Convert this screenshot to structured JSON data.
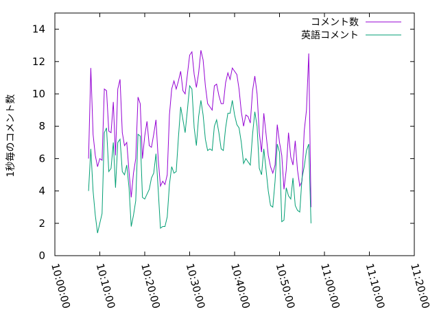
{
  "chart_data": {
    "type": "line",
    "title": "",
    "xlabel": "",
    "ylabel": "1秒毎のコメント数",
    "ylim": [
      0,
      15
    ],
    "yticks": [
      0,
      2,
      4,
      6,
      8,
      10,
      12,
      14
    ],
    "xlim": [
      "10:00:00",
      "11:20:00"
    ],
    "xticks": [
      "10:00:00",
      "10:10:00",
      "10:20:00",
      "10:30:00",
      "10:40:00",
      "10:50:00",
      "11:00:00",
      "11:10:00",
      "11:20:00"
    ],
    "grid": false,
    "legend_position": "top-right",
    "series": [
      {
        "name": "コメント数",
        "color": "#9400d3",
        "points": [
          [
            "10:07:30",
            6.0
          ],
          [
            "10:08:00",
            11.6
          ],
          [
            "10:08:30",
            7.5
          ],
          [
            "10:09:00",
            6.2
          ],
          [
            "10:09:30",
            5.5
          ],
          [
            "10:10:00",
            6.0
          ],
          [
            "10:10:30",
            5.9
          ],
          [
            "10:11:00",
            10.3
          ],
          [
            "10:11:30",
            10.2
          ],
          [
            "10:12:00",
            7.7
          ],
          [
            "10:12:30",
            7.6
          ],
          [
            "10:13:00",
            9.5
          ],
          [
            "10:13:30",
            6.2
          ],
          [
            "10:14:00",
            10.3
          ],
          [
            "10:14:30",
            10.9
          ],
          [
            "10:15:00",
            7.6
          ],
          [
            "10:15:30",
            6.8
          ],
          [
            "10:16:00",
            7.0
          ],
          [
            "10:16:30",
            5.2
          ],
          [
            "10:17:00",
            3.6
          ],
          [
            "10:17:30",
            5.1
          ],
          [
            "10:18:00",
            6.0
          ],
          [
            "10:18:30",
            9.8
          ],
          [
            "10:19:00",
            9.4
          ],
          [
            "10:19:30",
            6.0
          ],
          [
            "10:20:00",
            7.4
          ],
          [
            "10:20:30",
            8.3
          ],
          [
            "10:21:00",
            6.8
          ],
          [
            "10:21:30",
            6.7
          ],
          [
            "10:22:00",
            7.5
          ],
          [
            "10:22:30",
            8.4
          ],
          [
            "10:23:00",
            6.0
          ],
          [
            "10:23:30",
            4.3
          ],
          [
            "10:24:00",
            4.6
          ],
          [
            "10:24:30",
            4.4
          ],
          [
            "10:25:00",
            5.0
          ],
          [
            "10:25:30",
            8.7
          ],
          [
            "10:26:00",
            10.3
          ],
          [
            "10:26:30",
            10.8
          ],
          [
            "10:27:00",
            10.3
          ],
          [
            "10:27:30",
            10.8
          ],
          [
            "10:28:00",
            11.4
          ],
          [
            "10:28:30",
            10.2
          ],
          [
            "10:29:00",
            10.0
          ],
          [
            "10:29:30",
            11.2
          ],
          [
            "10:30:00",
            12.4
          ],
          [
            "10:30:30",
            12.6
          ],
          [
            "10:31:00",
            11.2
          ],
          [
            "10:31:30",
            10.4
          ],
          [
            "10:32:00",
            11.3
          ],
          [
            "10:32:30",
            12.7
          ],
          [
            "10:33:00",
            12.1
          ],
          [
            "10:33:30",
            10.5
          ],
          [
            "10:34:00",
            9.4
          ],
          [
            "10:34:30",
            9.2
          ],
          [
            "10:35:00",
            9.0
          ],
          [
            "10:35:30",
            10.5
          ],
          [
            "10:36:00",
            10.6
          ],
          [
            "10:36:30",
            9.9
          ],
          [
            "10:37:00",
            9.4
          ],
          [
            "10:37:30",
            9.4
          ],
          [
            "10:38:00",
            10.7
          ],
          [
            "10:38:30",
            11.3
          ],
          [
            "10:39:00",
            10.9
          ],
          [
            "10:39:30",
            11.6
          ],
          [
            "10:40:00",
            11.4
          ],
          [
            "10:40:30",
            11.2
          ],
          [
            "10:41:00",
            10.3
          ],
          [
            "10:41:30",
            8.9
          ],
          [
            "10:42:00",
            8.0
          ],
          [
            "10:42:30",
            8.7
          ],
          [
            "10:43:00",
            8.6
          ],
          [
            "10:43:30",
            8.2
          ],
          [
            "10:44:00",
            10.2
          ],
          [
            "10:44:30",
            11.1
          ],
          [
            "10:45:00",
            10.0
          ],
          [
            "10:45:30",
            7.6
          ],
          [
            "10:46:00",
            6.4
          ],
          [
            "10:46:30",
            8.8
          ],
          [
            "10:47:00",
            7.5
          ],
          [
            "10:47:30",
            6.2
          ],
          [
            "10:48:00",
            5.5
          ],
          [
            "10:48:30",
            5.1
          ],
          [
            "10:49:00",
            5.6
          ],
          [
            "10:49:30",
            8.1
          ],
          [
            "10:50:00",
            7.0
          ],
          [
            "10:50:30",
            6.2
          ],
          [
            "10:51:00",
            4.1
          ],
          [
            "10:51:30",
            5.3
          ],
          [
            "10:52:00",
            7.6
          ],
          [
            "10:52:30",
            6.1
          ],
          [
            "10:53:00",
            5.6
          ],
          [
            "10:53:30",
            7.1
          ],
          [
            "10:54:00",
            5.3
          ],
          [
            "10:54:30",
            4.3
          ],
          [
            "10:55:00",
            4.6
          ],
          [
            "10:55:30",
            7.7
          ],
          [
            "10:56:00",
            9.0
          ],
          [
            "10:56:30",
            12.5
          ],
          [
            "10:57:00",
            3.0
          ]
        ]
      },
      {
        "name": "英語コメント",
        "color": "#009e73",
        "points": [
          [
            "10:07:30",
            4.0
          ],
          [
            "10:08:00",
            6.6
          ],
          [
            "10:08:30",
            4.0
          ],
          [
            "10:09:00",
            2.5
          ],
          [
            "10:09:30",
            1.4
          ],
          [
            "10:10:00",
            2.0
          ],
          [
            "10:10:30",
            2.6
          ],
          [
            "10:11:00",
            7.6
          ],
          [
            "10:11:30",
            7.9
          ],
          [
            "10:12:00",
            5.2
          ],
          [
            "10:12:30",
            5.4
          ],
          [
            "10:13:00",
            7.0
          ],
          [
            "10:13:30",
            4.2
          ],
          [
            "10:14:00",
            7.0
          ],
          [
            "10:14:30",
            7.2
          ],
          [
            "10:15:00",
            5.2
          ],
          [
            "10:15:30",
            5.0
          ],
          [
            "10:16:00",
            5.6
          ],
          [
            "10:16:30",
            4.2
          ],
          [
            "10:17:00",
            1.8
          ],
          [
            "10:17:30",
            2.5
          ],
          [
            "10:18:00",
            3.4
          ],
          [
            "10:18:30",
            7.5
          ],
          [
            "10:19:00",
            7.4
          ],
          [
            "10:19:30",
            3.6
          ],
          [
            "10:20:00",
            3.5
          ],
          [
            "10:20:30",
            3.8
          ],
          [
            "10:21:00",
            4.1
          ],
          [
            "10:21:30",
            4.8
          ],
          [
            "10:22:00",
            5.1
          ],
          [
            "10:22:30",
            6.3
          ],
          [
            "10:23:00",
            4.1
          ],
          [
            "10:23:30",
            1.7
          ],
          [
            "10:24:00",
            1.8
          ],
          [
            "10:24:30",
            1.8
          ],
          [
            "10:25:00",
            2.4
          ],
          [
            "10:25:30",
            4.4
          ],
          [
            "10:26:00",
            5.5
          ],
          [
            "10:26:30",
            5.1
          ],
          [
            "10:27:00",
            5.2
          ],
          [
            "10:27:30",
            7.3
          ],
          [
            "10:28:00",
            9.2
          ],
          [
            "10:28:30",
            8.4
          ],
          [
            "10:29:00",
            7.6
          ],
          [
            "10:29:30",
            9.0
          ],
          [
            "10:30:00",
            10.5
          ],
          [
            "10:30:30",
            10.3
          ],
          [
            "10:31:00",
            7.9
          ],
          [
            "10:31:30",
            6.8
          ],
          [
            "10:32:00",
            8.6
          ],
          [
            "10:32:30",
            9.6
          ],
          [
            "10:33:00",
            8.7
          ],
          [
            "10:33:30",
            7.2
          ],
          [
            "10:34:00",
            6.5
          ],
          [
            "10:34:30",
            6.6
          ],
          [
            "10:35:00",
            6.5
          ],
          [
            "10:35:30",
            8.0
          ],
          [
            "10:36:00",
            8.4
          ],
          [
            "10:36:30",
            7.6
          ],
          [
            "10:37:00",
            6.6
          ],
          [
            "10:37:30",
            6.5
          ],
          [
            "10:38:00",
            7.9
          ],
          [
            "10:38:30",
            8.8
          ],
          [
            "10:39:00",
            8.8
          ],
          [
            "10:39:30",
            9.6
          ],
          [
            "10:40:00",
            8.7
          ],
          [
            "10:40:30",
            8.1
          ],
          [
            "10:41:00",
            7.9
          ],
          [
            "10:41:30",
            7.0
          ],
          [
            "10:42:00",
            5.7
          ],
          [
            "10:42:30",
            6.0
          ],
          [
            "10:43:00",
            5.8
          ],
          [
            "10:43:30",
            5.6
          ],
          [
            "10:44:00",
            7.5
          ],
          [
            "10:44:30",
            8.9
          ],
          [
            "10:45:00",
            8.0
          ],
          [
            "10:45:30",
            5.4
          ],
          [
            "10:46:00",
            5.0
          ],
          [
            "10:46:30",
            6.6
          ],
          [
            "10:47:00",
            5.3
          ],
          [
            "10:47:30",
            4.0
          ],
          [
            "10:48:00",
            3.1
          ],
          [
            "10:48:30",
            3.0
          ],
          [
            "10:49:00",
            4.6
          ],
          [
            "10:49:30",
            6.9
          ],
          [
            "10:50:00",
            6.4
          ],
          [
            "10:50:30",
            2.1
          ],
          [
            "10:51:00",
            2.2
          ],
          [
            "10:51:30",
            4.2
          ],
          [
            "10:52:00",
            3.7
          ],
          [
            "10:52:30",
            3.5
          ],
          [
            "10:53:00",
            4.8
          ],
          [
            "10:53:30",
            3.1
          ],
          [
            "10:54:00",
            2.8
          ],
          [
            "10:54:30",
            2.7
          ],
          [
            "10:55:00",
            4.8
          ],
          [
            "10:55:30",
            5.5
          ],
          [
            "10:56:00",
            6.5
          ],
          [
            "10:56:30",
            6.9
          ],
          [
            "10:57:00",
            2.0
          ]
        ]
      }
    ]
  }
}
